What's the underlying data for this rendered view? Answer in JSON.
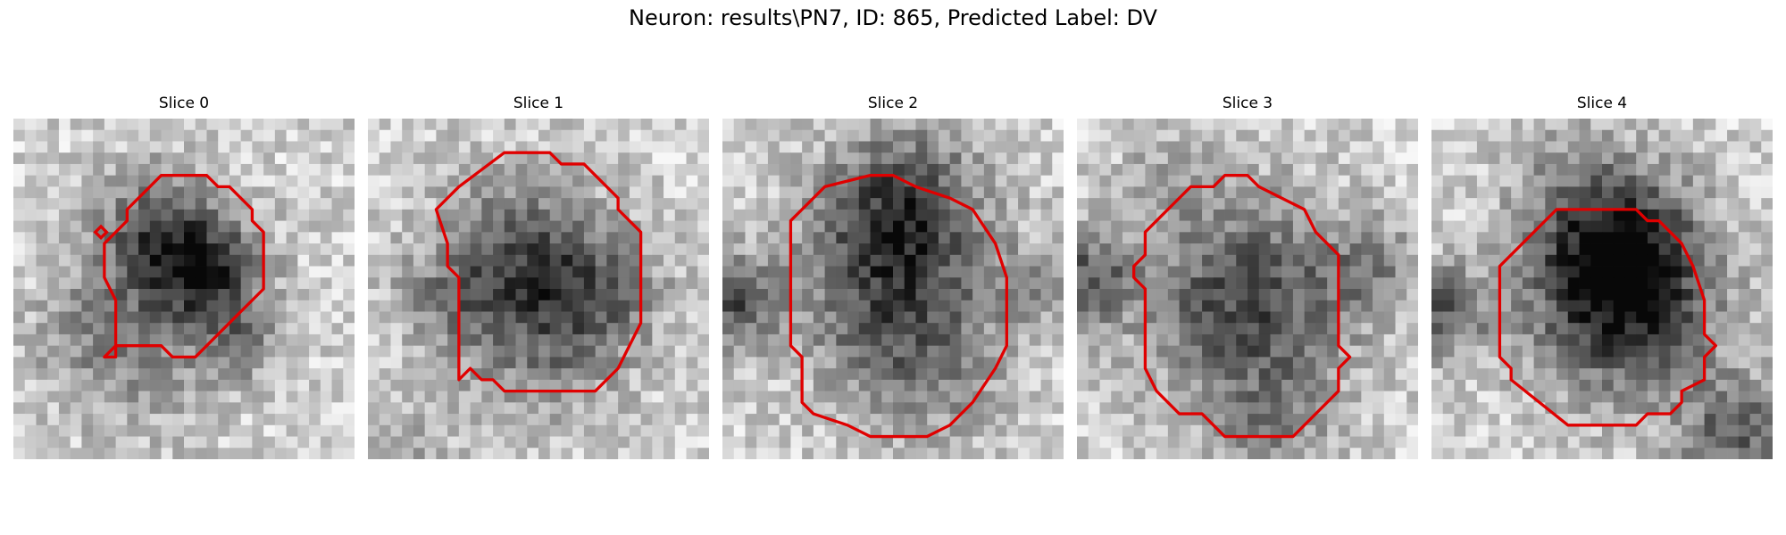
{
  "figure": {
    "title": "Neuron: results\\PN7, ID: 865, Predicted Label: DV",
    "contour_color": "#e00000"
  },
  "slices": [
    {
      "title": "Slice 0"
    },
    {
      "title": "Slice 1"
    },
    {
      "title": "Slice 2"
    },
    {
      "title": "Slice 3"
    },
    {
      "title": "Slice 4"
    }
  ]
}
